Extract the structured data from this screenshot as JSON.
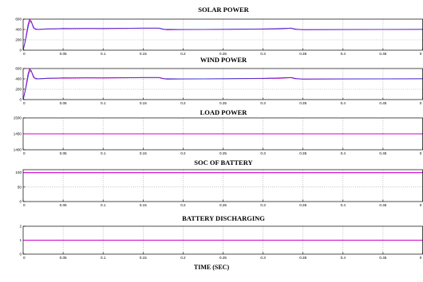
{
  "chart_data": [
    {
      "type": "line",
      "title": "SOLAR POWER",
      "xlim": [
        0,
        0.5
      ],
      "ylim": [
        0,
        600
      ],
      "x_ticks": [
        "0",
        "0.05",
        "0.1",
        "0.15",
        "0.2",
        "0.25",
        "0.3",
        "0.35",
        "0.4",
        "0.45",
        "0"
      ],
      "y_ticks": [
        "0",
        "200",
        "400",
        "600"
      ],
      "grid": true,
      "series": [
        {
          "color": "#cc00cc",
          "points": [
            [
              0,
              0
            ],
            [
              0.003,
              200
            ],
            [
              0.006,
              480
            ],
            [
              0.008,
              590
            ],
            [
              0.01,
              560
            ],
            [
              0.013,
              430
            ],
            [
              0.016,
              400
            ],
            [
              0.02,
              400
            ],
            [
              0.03,
              410
            ],
            [
              0.04,
              412
            ],
            [
              0.05,
              418
            ],
            [
              0.06,
              416
            ],
            [
              0.08,
              420
            ],
            [
              0.1,
              418
            ],
            [
              0.15,
              425
            ],
            [
              0.17,
              425
            ],
            [
              0.175,
              405
            ],
            [
              0.18,
              395
            ],
            [
              0.2,
              398
            ],
            [
              0.25,
              402
            ],
            [
              0.3,
              408
            ],
            [
              0.32,
              412
            ],
            [
              0.335,
              425
            ],
            [
              0.34,
              405
            ],
            [
              0.35,
              395
            ],
            [
              0.4,
              398
            ],
            [
              0.45,
              400
            ],
            [
              0.5,
              402
            ]
          ]
        },
        {
          "color": "#3344cc",
          "points": [
            [
              0,
              0
            ],
            [
              0.004,
              260
            ],
            [
              0.007,
              500
            ],
            [
              0.009,
              560
            ],
            [
              0.011,
              520
            ],
            [
              0.014,
              420
            ],
            [
              0.018,
              405
            ],
            [
              0.03,
              412
            ],
            [
              0.05,
              420
            ],
            [
              0.1,
              420
            ],
            [
              0.15,
              427
            ],
            [
              0.17,
              427
            ],
            [
              0.176,
              407
            ],
            [
              0.2,
              400
            ],
            [
              0.25,
              404
            ],
            [
              0.3,
              410
            ],
            [
              0.335,
              427
            ],
            [
              0.342,
              407
            ],
            [
              0.35,
              397
            ],
            [
              0.4,
              400
            ],
            [
              0.5,
              404
            ]
          ]
        }
      ]
    },
    {
      "type": "line",
      "title": "WIND POWER",
      "xlim": [
        0,
        0.5
      ],
      "ylim": [
        0,
        600
      ],
      "x_ticks": [
        "0",
        "0.05",
        "0.1",
        "0.15",
        "0.2",
        "0.25",
        "0.3",
        "0.35",
        "0.4",
        "0.45",
        "0"
      ],
      "y_ticks": [
        "0",
        "200",
        "400",
        "600"
      ],
      "grid": true,
      "series": [
        {
          "color": "#cc00cc",
          "points": [
            [
              0,
              0
            ],
            [
              0.003,
              200
            ],
            [
              0.006,
              480
            ],
            [
              0.008,
              590
            ],
            [
              0.01,
              560
            ],
            [
              0.013,
              430
            ],
            [
              0.016,
              400
            ],
            [
              0.02,
              400
            ],
            [
              0.03,
              410
            ],
            [
              0.04,
              412
            ],
            [
              0.05,
              418
            ],
            [
              0.06,
              416
            ],
            [
              0.08,
              420
            ],
            [
              0.1,
              418
            ],
            [
              0.15,
              425
            ],
            [
              0.17,
              425
            ],
            [
              0.175,
              405
            ],
            [
              0.18,
              395
            ],
            [
              0.2,
              398
            ],
            [
              0.25,
              402
            ],
            [
              0.3,
              408
            ],
            [
              0.32,
              412
            ],
            [
              0.335,
              425
            ],
            [
              0.34,
              405
            ],
            [
              0.35,
              395
            ],
            [
              0.4,
              398
            ],
            [
              0.45,
              400
            ],
            [
              0.5,
              402
            ]
          ]
        },
        {
          "color": "#3344cc",
          "points": [
            [
              0,
              0
            ],
            [
              0.004,
              260
            ],
            [
              0.007,
              500
            ],
            [
              0.009,
              560
            ],
            [
              0.011,
              520
            ],
            [
              0.014,
              420
            ],
            [
              0.018,
              405
            ],
            [
              0.03,
              412
            ],
            [
              0.05,
              420
            ],
            [
              0.1,
              420
            ],
            [
              0.15,
              427
            ],
            [
              0.17,
              427
            ],
            [
              0.176,
              407
            ],
            [
              0.2,
              400
            ],
            [
              0.25,
              404
            ],
            [
              0.3,
              410
            ],
            [
              0.335,
              427
            ],
            [
              0.342,
              407
            ],
            [
              0.35,
              397
            ],
            [
              0.4,
              400
            ],
            [
              0.5,
              404
            ]
          ]
        }
      ]
    },
    {
      "type": "line",
      "title": "LOAD POWER",
      "xlim": [
        0,
        0.5
      ],
      "ylim": [
        1400,
        1500
      ],
      "x_ticks": [
        "0",
        "0.05",
        "0.1",
        "0.15",
        "0.2",
        "0.25",
        "0.3",
        "0.35",
        "0.4",
        "0.45",
        "0"
      ],
      "y_ticks": [
        "1400",
        "1450",
        "1500"
      ],
      "grid": true,
      "series": [
        {
          "color": "#cc00cc",
          "points": [
            [
              0,
              1450
            ],
            [
              0.5,
              1450
            ]
          ]
        }
      ]
    },
    {
      "type": "line",
      "title": "SOC OF BATTERY",
      "xlim": [
        0,
        0.5
      ],
      "ylim": [
        0,
        110
      ],
      "x_ticks": [
        "0",
        "0.05",
        "0.1",
        "0.15",
        "0.2",
        "0.25",
        "0.3",
        "0.35",
        "0.4",
        "0.45",
        "0"
      ],
      "y_ticks": [
        "0",
        "50",
        "100"
      ],
      "grid": true,
      "series": [
        {
          "color": "#cc00cc",
          "points": [
            [
              0,
              100
            ],
            [
              0.5,
              100
            ]
          ]
        }
      ]
    },
    {
      "type": "line",
      "title": "BATTERY DISCHARGING",
      "xlim": [
        0,
        0.5
      ],
      "ylim": [
        0,
        2
      ],
      "x_ticks": [
        "0",
        "0.05",
        "0.1",
        "0.15",
        "0.2",
        "0.25",
        "0.3",
        "0.35",
        "0.4",
        "0.45",
        "0"
      ],
      "y_ticks": [
        "0",
        "1",
        "2"
      ],
      "grid": true,
      "series": [
        {
          "color": "#cc00cc",
          "points": [
            [
              0,
              1
            ],
            [
              0.5,
              1
            ]
          ]
        }
      ]
    }
  ],
  "xlabel": "TIME (SEC)"
}
